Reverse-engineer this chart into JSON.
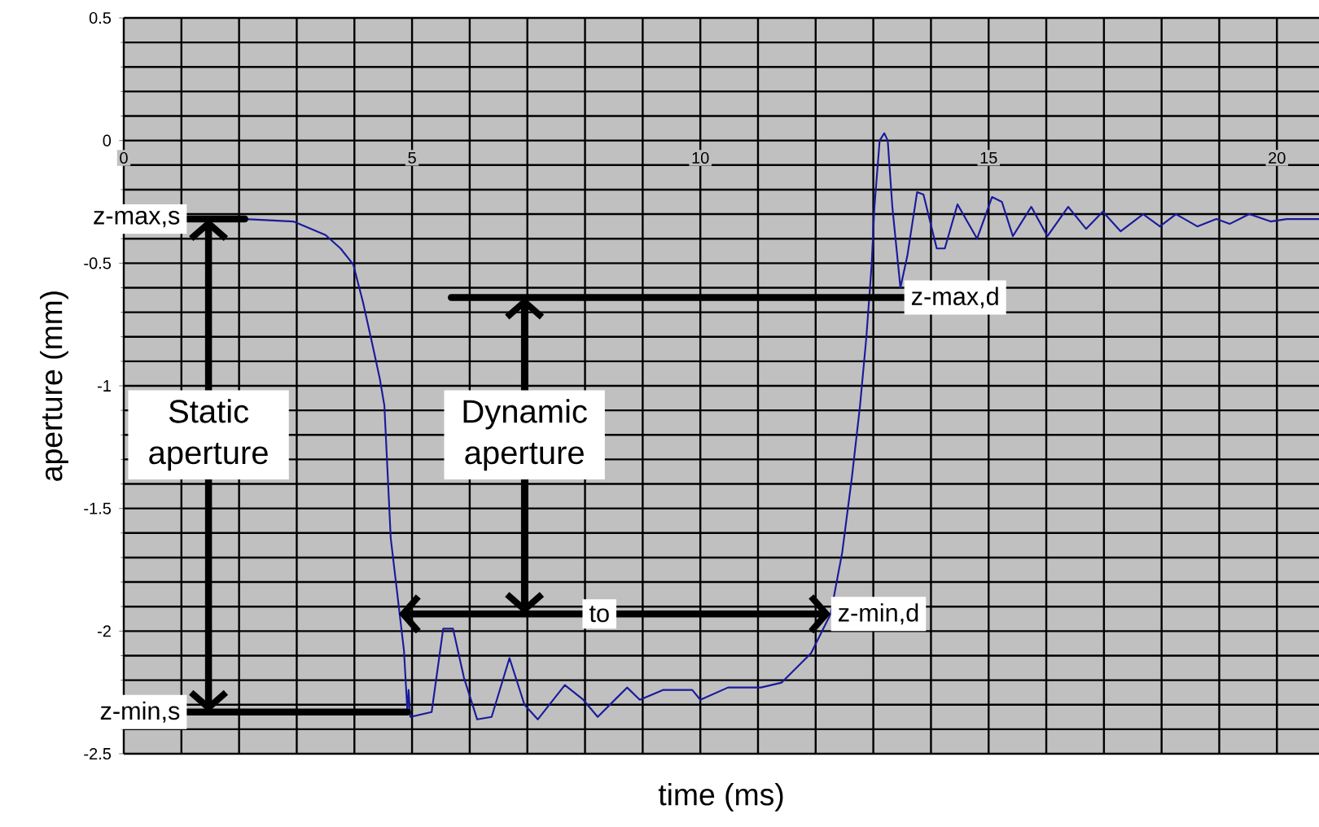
{
  "chart_data": {
    "type": "line",
    "xlabel": "time (ms)",
    "ylabel": "aperture (mm)",
    "xlim": [
      0,
      20.73
    ],
    "ylim": [
      -2.5,
      0.5
    ],
    "xticks": [
      0,
      5,
      10,
      15,
      20
    ],
    "yticks": [
      0.5,
      0,
      -0.5,
      -1,
      -1.5,
      -2,
      -2.5
    ],
    "grid": true,
    "series": [
      {
        "color": "#1a1a9c",
        "x": [
          2.1,
          2.94,
          3.5,
          3.76,
          3.98,
          4.15,
          4.32,
          4.44,
          4.52,
          4.63,
          4.86,
          4.92,
          4.94,
          4.97,
          5.34,
          5.54,
          5.71,
          5.9,
          6.13,
          6.38,
          6.69,
          6.95,
          7.18,
          7.65,
          7.97,
          8.22,
          8.73,
          8.95,
          9.35,
          9.86,
          10.0,
          10.48,
          11.05,
          11.41,
          11.92,
          12.26,
          12.46,
          12.63,
          12.77,
          12.88,
          12.97,
          13.02,
          13.11,
          13.19,
          13.25,
          13.33,
          13.47,
          13.59,
          13.76,
          13.87,
          14.1,
          14.24,
          14.46,
          14.8,
          15.06,
          15.23,
          15.42,
          15.74,
          16.02,
          16.38,
          16.69,
          16.98,
          17.29,
          17.68,
          17.97,
          18.25,
          18.62,
          18.95,
          19.18,
          19.52,
          19.89,
          20.17,
          20.73
        ],
        "values": [
          -0.32,
          -0.33,
          -0.385,
          -0.44,
          -0.505,
          -0.66,
          -0.84,
          -0.97,
          -1.08,
          -1.62,
          -2.08,
          -2.33,
          -2.24,
          -2.35,
          -2.33,
          -1.99,
          -1.99,
          -2.19,
          -2.36,
          -2.35,
          -2.11,
          -2.3,
          -2.36,
          -2.22,
          -2.28,
          -2.35,
          -2.23,
          -2.28,
          -2.24,
          -2.24,
          -2.28,
          -2.23,
          -2.23,
          -2.21,
          -2.09,
          -1.93,
          -1.68,
          -1.37,
          -1.08,
          -0.8,
          -0.51,
          -0.27,
          0.0,
          0.03,
          0.0,
          -0.27,
          -0.6,
          -0.47,
          -0.21,
          -0.22,
          -0.44,
          -0.44,
          -0.26,
          -0.4,
          -0.23,
          -0.25,
          -0.39,
          -0.27,
          -0.39,
          -0.27,
          -0.36,
          -0.29,
          -0.37,
          -0.3,
          -0.35,
          -0.3,
          -0.35,
          -0.32,
          -0.34,
          -0.3,
          -0.33,
          -0.32,
          -0.32
        ]
      }
    ],
    "annotations": [
      {
        "text": "z-max,s",
        "x": 2.1,
        "y": -0.32
      },
      {
        "text": "z-min,s",
        "x": 4.92,
        "y": -2.33
      },
      "Static aperture",
      "Dynamic aperture",
      "z-max,d",
      "to",
      {
        "text": "z-min,d",
        "x": 12.26,
        "y": -1.93
      }
    ]
  }
}
